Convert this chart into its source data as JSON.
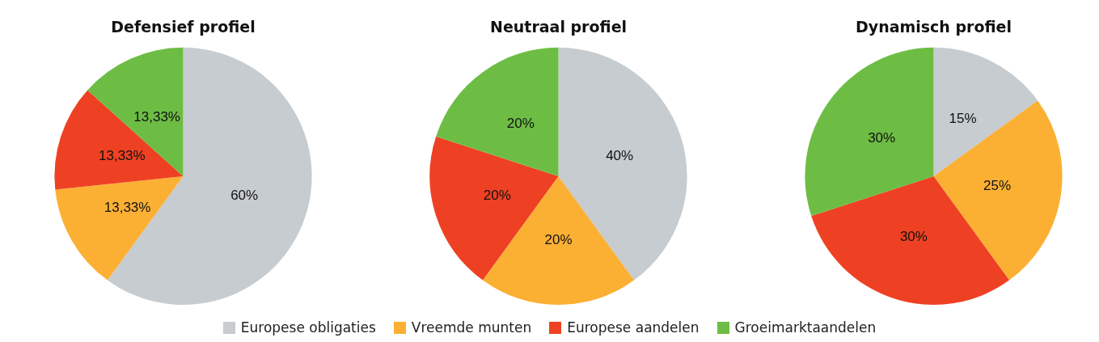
{
  "chart_data": [
    {
      "type": "pie",
      "title": "Defensief profiel",
      "categories": [
        "Europese obligaties",
        "Vreemde munten",
        "Europese aandelen",
        "Groeimarktaandelen"
      ],
      "values": [
        60,
        13.33,
        13.33,
        13.33
      ],
      "value_labels": [
        "60%",
        "13,33%",
        "13,33%",
        "13,33%"
      ],
      "colors": [
        "#c6cccf",
        "#fbb034",
        "#ee4123",
        "#6dbd45"
      ],
      "legend": "bottom"
    },
    {
      "type": "pie",
      "title": "Neutraal profiel",
      "categories": [
        null,
        null,
        null,
        null
      ],
      "values": [
        40,
        20,
        20,
        20
      ],
      "value_labels": [
        "40%",
        "20%",
        "20%",
        "20%"
      ],
      "colors": [
        "#c6cccf",
        "#fbb034",
        "#ee4123",
        "#6dbd45"
      ]
    },
    {
      "type": "pie",
      "title": "Dynamisch profiel",
      "categories": [
        null,
        null,
        null,
        null
      ],
      "values": [
        15,
        25,
        30,
        30
      ],
      "value_labels": [
        "15%",
        "25%",
        "30%",
        "30%"
      ],
      "colors": [
        "#c6cccf",
        "#fbb034",
        "#ee4123",
        "#6dbd45"
      ]
    }
  ]
}
